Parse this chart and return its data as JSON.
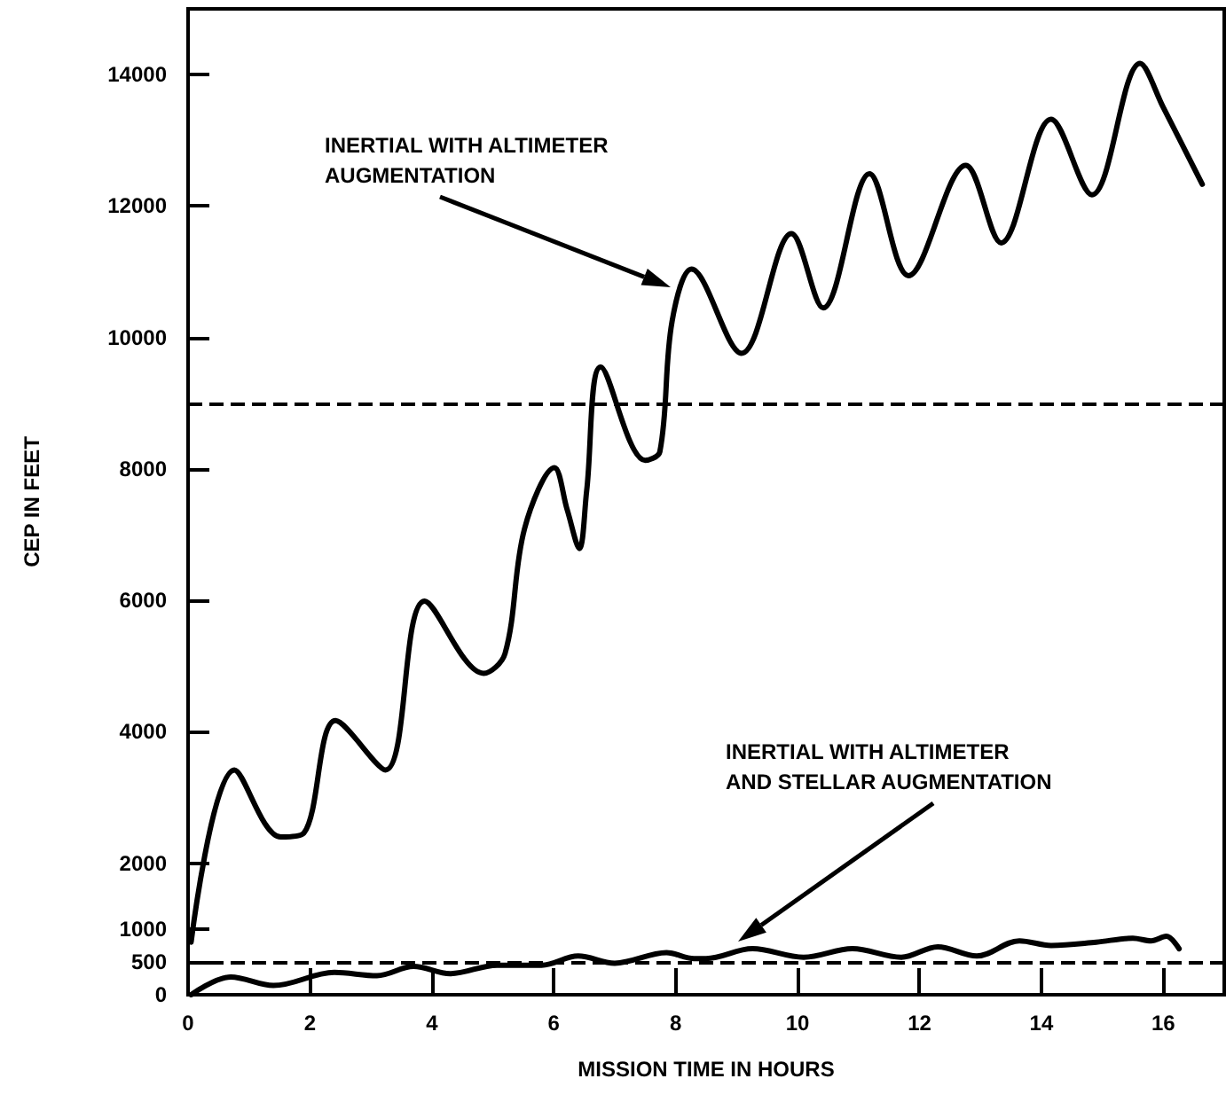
{
  "chart_data": {
    "type": "line",
    "xlabel": "MISSION TIME IN HOURS",
    "ylabel": "CEP IN FEET",
    "xlim": [
      0,
      17
    ],
    "xticks": [
      0,
      2,
      4,
      6,
      8,
      10,
      12,
      14,
      16
    ],
    "ylim": [
      0,
      15000
    ],
    "yticks": [
      0,
      500,
      1000,
      2000,
      4000,
      6000,
      8000,
      10000,
      12000,
      14000
    ],
    "grid": false,
    "series": [
      {
        "color": "#000000",
        "x": [
          0.05,
          0.76,
          1.52,
          1.9,
          2.42,
          3.24,
          3.88,
          4.85,
          5.2,
          5.52,
          6.01,
          6.22,
          6.42,
          6.54,
          6.77,
          7.5,
          7.74,
          7.94,
          8.26,
          9.08,
          9.9,
          10.42,
          11.18,
          11.82,
          12.76,
          13.34,
          14.16,
          14.83,
          15.62,
          16.0,
          16.64
        ],
        "values": [
          800,
          3420,
          2400,
          2460,
          4170,
          3420,
          5990,
          4890,
          5190,
          7090,
          8020,
          7380,
          6790,
          7670,
          9550,
          8130,
          8260,
          10240,
          11040,
          9760,
          11580,
          10450,
          12490,
          10940,
          12620,
          11440,
          13320,
          12170,
          14170,
          13500,
          12330
        ]
      },
      {
        "color": "#000000",
        "x": [
          0.05,
          0.7,
          1.4,
          2.4,
          3.1,
          3.7,
          4.3,
          5.07,
          5.8,
          6.4,
          7.0,
          7.85,
          8.3,
          8.5,
          9.26,
          10.1,
          10.9,
          11.7,
          12.3,
          12.94,
          13.64,
          14.16,
          14.9,
          15.5,
          15.8,
          16.05,
          16.26
        ],
        "values": [
          0,
          270,
          140,
          340,
          290,
          430,
          320,
          450,
          450,
          590,
          480,
          640,
          550,
          550,
          700,
          570,
          700,
          570,
          730,
          590,
          820,
          750,
          800,
          860,
          820,
          890,
          700
        ]
      }
    ],
    "ref_lines": [
      {
        "axis": "y",
        "value": 9000,
        "line_style": "dashed",
        "color": "#000000"
      },
      {
        "axis": "y",
        "value": 500,
        "line_style": "dashed",
        "color": "#000000"
      }
    ],
    "annotations": [
      "INERTIAL WITH ALTIMETER\nAUGMENTATION",
      "INERTIAL WITH ALTIMETER\nAND STELLAR AUGMENTATION"
    ]
  }
}
